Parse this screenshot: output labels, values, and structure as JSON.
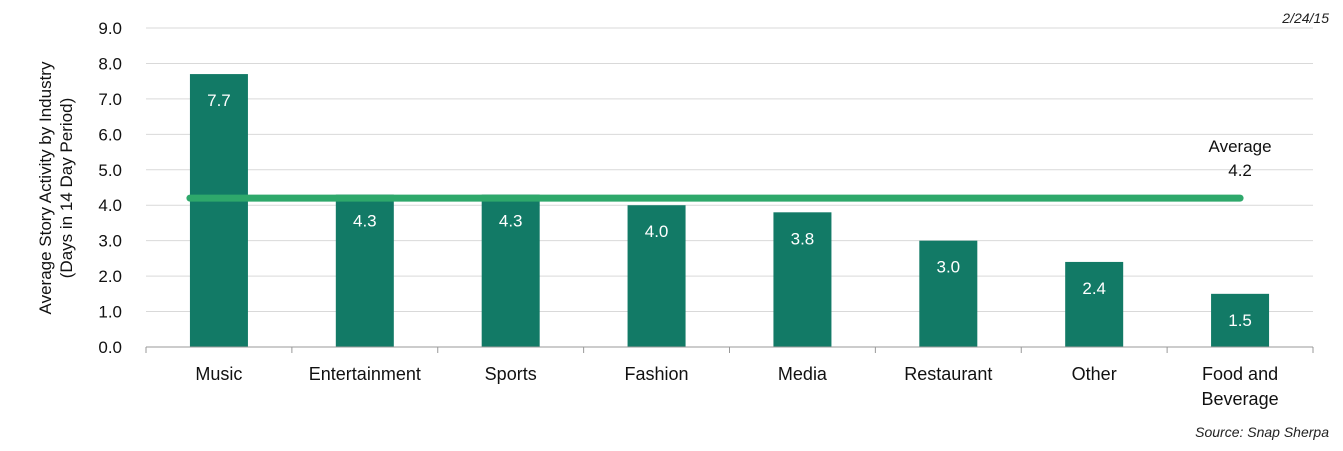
{
  "date": "2/24/15",
  "source": "Source: Snap Sherpa",
  "chart_data": {
    "type": "bar",
    "title": "",
    "ylabel_line1": "Average Story Activity by Industry",
    "ylabel_line2": "(Days in 14 Day Period)",
    "xlabel": "",
    "ylim": [
      0,
      9
    ],
    "yticks": [
      "0.0",
      "1.0",
      "2.0",
      "3.0",
      "4.0",
      "5.0",
      "6.0",
      "7.0",
      "8.0",
      "9.0"
    ],
    "grid": true,
    "bar_color": "#127a66",
    "categories": [
      "Music",
      "Entertainment",
      "Sports",
      "Fashion",
      "Media",
      "Restaurant",
      "Other",
      "Food and\nBeverage"
    ],
    "values": [
      7.7,
      4.3,
      4.3,
      4.0,
      3.8,
      3.0,
      2.4,
      1.5
    ],
    "value_labels": [
      "7.7",
      "4.3",
      "4.3",
      "4.0",
      "3.8",
      "3.0",
      "2.4",
      "1.5"
    ],
    "average": {
      "label": "Average",
      "value_label": "4.2",
      "value": 4.2,
      "color": "#2ea86b"
    }
  }
}
